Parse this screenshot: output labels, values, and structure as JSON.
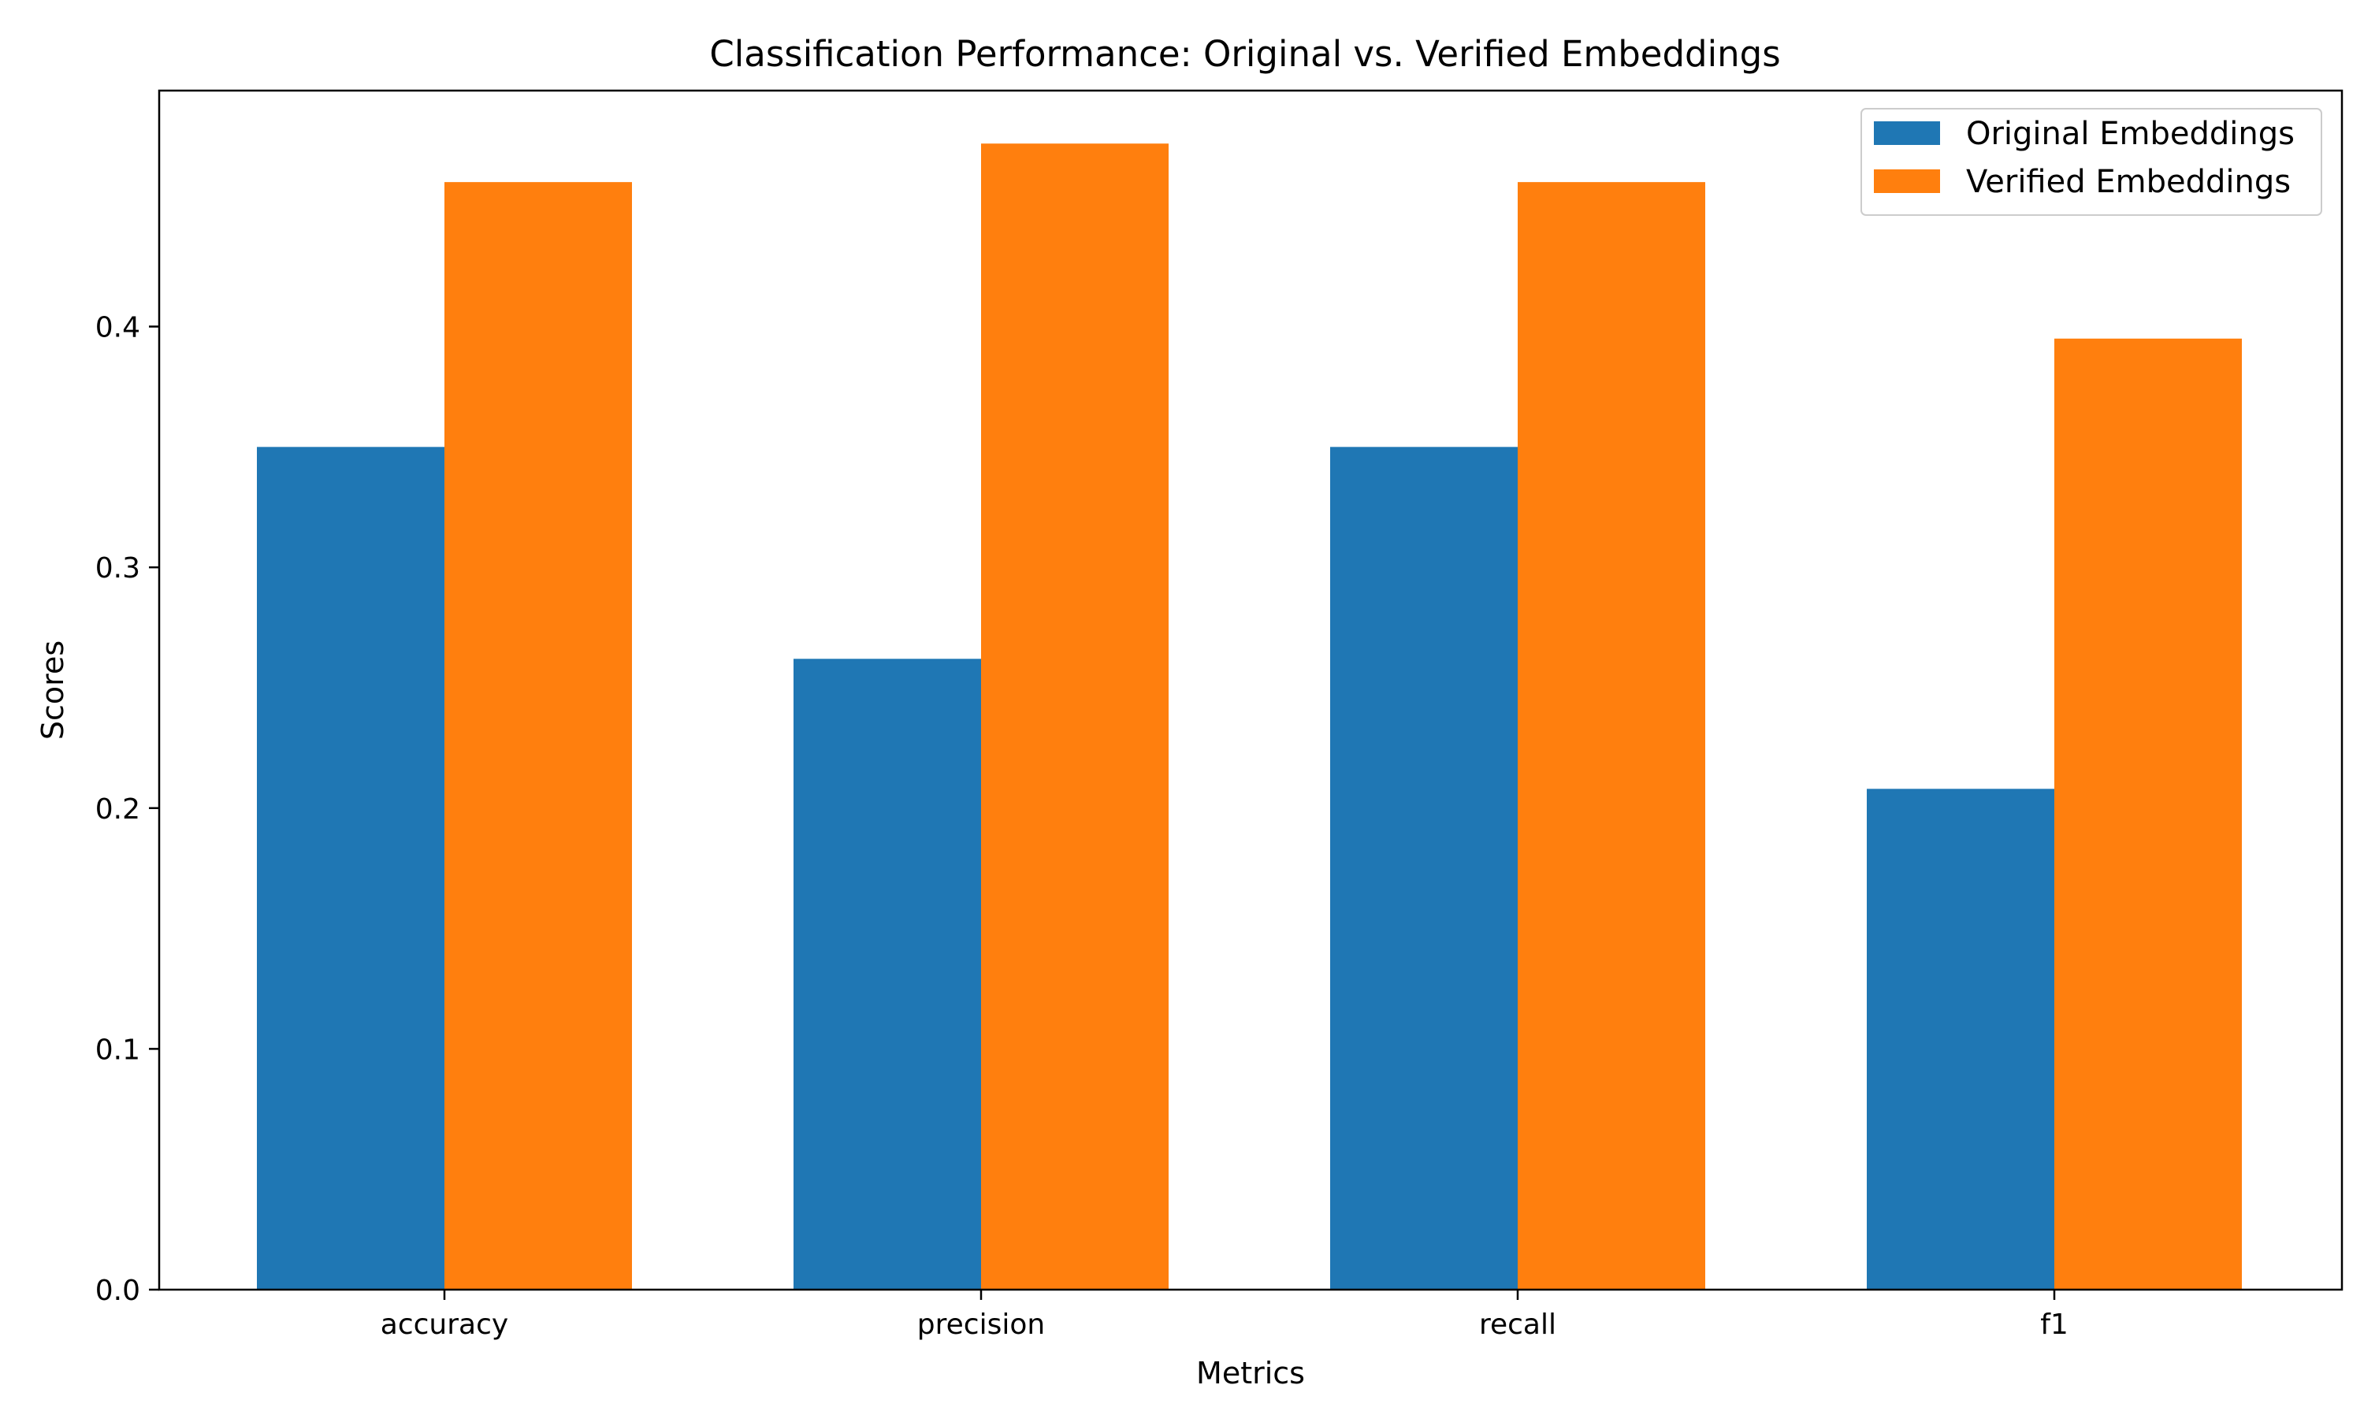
{
  "chart_data": {
    "type": "bar",
    "title": "Classification Performance: Original vs. Verified Embeddings",
    "xlabel": "Metrics",
    "ylabel": "Scores",
    "categories": [
      "accuracy",
      "precision",
      "recall",
      "f1"
    ],
    "series": [
      {
        "name": "Original Embeddings",
        "color": "#1f77b4",
        "values": [
          0.35,
          0.262,
          0.35,
          0.208
        ]
      },
      {
        "name": "Verified Embeddings",
        "color": "#ff7f0e",
        "values": [
          0.46,
          0.476,
          0.46,
          0.395
        ]
      }
    ],
    "ylim": [
      0,
      0.498
    ],
    "yticks": [
      0.0,
      0.1,
      0.2,
      0.3,
      0.4
    ],
    "ytick_labels": [
      "0.0",
      "0.1",
      "0.2",
      "0.3",
      "0.4"
    ],
    "grid": false,
    "legend_position": "top-right"
  }
}
